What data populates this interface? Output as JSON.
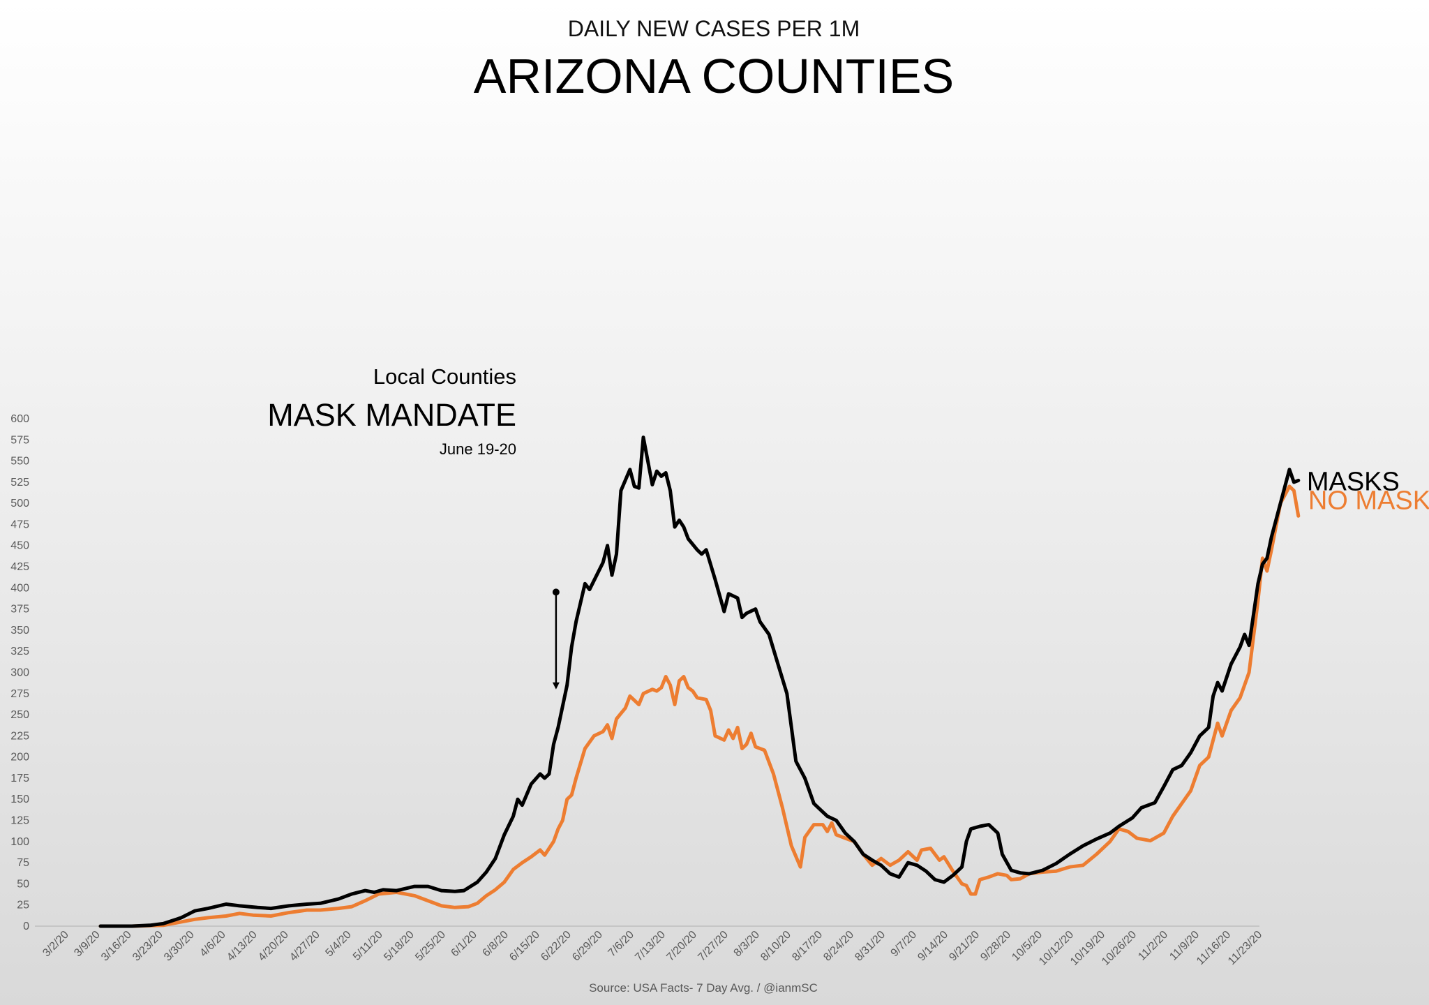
{
  "chart_data": {
    "type": "line",
    "subtitle": "DAILY NEW CASES PER 1M",
    "title": "ARIZONA COUNTIES",
    "source": "Source: USA Facts- 7 Day Avg. / @ianmSC",
    "x_start": "3/2/20",
    "x_end": "11/30/20",
    "x_tick_labels": [
      "3/2/20",
      "3/9/20",
      "3/16/20",
      "3/23/20",
      "3/30/20",
      "4/6/20",
      "4/13/20",
      "4/20/20",
      "4/27/20",
      "5/4/20",
      "5/11/20",
      "5/18/20",
      "5/25/20",
      "6/1/20",
      "6/8/20",
      "6/15/20",
      "6/22/20",
      "6/29/20",
      "7/6/20",
      "7/13/20",
      "7/20/20",
      "7/27/20",
      "8/3/20",
      "8/10/20",
      "8/17/20",
      "8/24/20",
      "8/31/20",
      "9/7/20",
      "9/14/20",
      "9/21/20",
      "9/28/20",
      "10/5/20",
      "10/12/20",
      "10/19/20",
      "10/26/20",
      "11/2/20",
      "11/9/20",
      "11/16/20",
      "11/23/20"
    ],
    "y_ticks": [
      0,
      25,
      50,
      75,
      100,
      125,
      150,
      175,
      200,
      225,
      250,
      275,
      300,
      325,
      350,
      375,
      400,
      425,
      450,
      475,
      500,
      525,
      550,
      575,
      600
    ],
    "ylim": [
      0,
      600
    ],
    "grid": false,
    "series": [
      {
        "name": "MASKS",
        "color": "#000000",
        "points": [
          [
            "3/9/20",
            0
          ],
          [
            "3/16/20",
            0
          ],
          [
            "3/20/20",
            1
          ],
          [
            "3/23/20",
            3
          ],
          [
            "3/27/20",
            10
          ],
          [
            "3/30/20",
            18
          ],
          [
            "4/2/20",
            21
          ],
          [
            "4/6/20",
            26
          ],
          [
            "4/9/20",
            24
          ],
          [
            "4/13/20",
            22
          ],
          [
            "4/16/20",
            21
          ],
          [
            "4/20/20",
            24
          ],
          [
            "4/24/20",
            26
          ],
          [
            "4/27/20",
            27
          ],
          [
            "5/1/20",
            32
          ],
          [
            "5/4/20",
            38
          ],
          [
            "5/7/20",
            42
          ],
          [
            "5/9/20",
            40
          ],
          [
            "5/11/20",
            43
          ],
          [
            "5/14/20",
            42
          ],
          [
            "5/18/20",
            47
          ],
          [
            "5/21/20",
            47
          ],
          [
            "5/24/20",
            42
          ],
          [
            "5/27/20",
            41
          ],
          [
            "5/29/20",
            42
          ],
          [
            "6/1/20",
            52
          ],
          [
            "6/3/20",
            64
          ],
          [
            "6/5/20",
            80
          ],
          [
            "6/7/20",
            108
          ],
          [
            "6/9/20",
            130
          ],
          [
            "6/10/20",
            150
          ],
          [
            "6/11/20",
            143
          ],
          [
            "6/13/20",
            168
          ],
          [
            "6/15/20",
            180
          ],
          [
            "6/16/20",
            175
          ],
          [
            "6/17/20",
            180
          ],
          [
            "6/18/20",
            215
          ],
          [
            "6/19/20",
            235
          ],
          [
            "6/20/20",
            260
          ],
          [
            "6/21/20",
            285
          ],
          [
            "6/22/20",
            330
          ],
          [
            "6/23/20",
            360
          ],
          [
            "6/25/20",
            405
          ],
          [
            "6/26/20",
            398
          ],
          [
            "6/29/20",
            430
          ],
          [
            "6/30/20",
            450
          ],
          [
            "7/1/20",
            415
          ],
          [
            "7/2/20",
            440
          ],
          [
            "7/3/20",
            515
          ],
          [
            "7/5/20",
            540
          ],
          [
            "7/6/20",
            520
          ],
          [
            "7/7/20",
            518
          ],
          [
            "7/8/20",
            578
          ],
          [
            "7/10/20",
            522
          ],
          [
            "7/11/20",
            538
          ],
          [
            "7/12/20",
            532
          ],
          [
            "7/13/20",
            536
          ],
          [
            "7/14/20",
            515
          ],
          [
            "7/15/20",
            472
          ],
          [
            "7/16/20",
            480
          ],
          [
            "7/17/20",
            472
          ],
          [
            "7/18/20",
            458
          ],
          [
            "7/20/20",
            445
          ],
          [
            "7/21/20",
            440
          ],
          [
            "7/22/20",
            445
          ],
          [
            "7/24/20",
            410
          ],
          [
            "7/26/20",
            372
          ],
          [
            "7/27/20",
            393
          ],
          [
            "7/29/20",
            388
          ],
          [
            "7/30/20",
            365
          ],
          [
            "7/31/20",
            370
          ],
          [
            "8/2/20",
            375
          ],
          [
            "8/3/20",
            360
          ],
          [
            "8/5/20",
            345
          ],
          [
            "8/7/20",
            310
          ],
          [
            "8/9/20",
            275
          ],
          [
            "8/11/20",
            195
          ],
          [
            "8/13/20",
            175
          ],
          [
            "8/15/20",
            145
          ],
          [
            "8/17/20",
            135
          ],
          [
            "8/18/20",
            130
          ],
          [
            "8/20/20",
            125
          ],
          [
            "8/22/20",
            110
          ],
          [
            "8/24/20",
            100
          ],
          [
            "8/26/20",
            85
          ],
          [
            "8/28/20",
            78
          ],
          [
            "8/30/20",
            72
          ],
          [
            "9/1/20",
            62
          ],
          [
            "9/3/20",
            58
          ],
          [
            "9/5/20",
            75
          ],
          [
            "9/7/20",
            72
          ],
          [
            "9/9/20",
            65
          ],
          [
            "9/11/20",
            55
          ],
          [
            "9/13/20",
            52
          ],
          [
            "9/15/20",
            60
          ],
          [
            "9/17/20",
            70
          ],
          [
            "9/18/20",
            100
          ],
          [
            "9/19/20",
            115
          ],
          [
            "9/21/20",
            118
          ],
          [
            "9/23/20",
            120
          ],
          [
            "9/25/20",
            110
          ],
          [
            "9/26/20",
            85
          ],
          [
            "9/28/20",
            66
          ],
          [
            "9/30/20",
            63
          ],
          [
            "10/2/20",
            62
          ],
          [
            "10/5/20",
            66
          ],
          [
            "10/8/20",
            74
          ],
          [
            "10/11/20",
            85
          ],
          [
            "10/14/20",
            95
          ],
          [
            "10/17/20",
            103
          ],
          [
            "10/20/20",
            110
          ],
          [
            "10/22/20",
            118
          ],
          [
            "10/25/20",
            128
          ],
          [
            "10/27/20",
            140
          ],
          [
            "10/30/20",
            146
          ],
          [
            "11/1/20",
            165
          ],
          [
            "11/3/20",
            185
          ],
          [
            "11/5/20",
            190
          ],
          [
            "11/7/20",
            205
          ],
          [
            "11/9/20",
            225
          ],
          [
            "11/11/20",
            235
          ],
          [
            "11/12/20",
            272
          ],
          [
            "11/13/20",
            288
          ],
          [
            "11/14/20",
            278
          ],
          [
            "11/16/20",
            310
          ],
          [
            "11/18/20",
            330
          ],
          [
            "11/19/20",
            345
          ],
          [
            "11/20/20",
            332
          ],
          [
            "11/22/20",
            405
          ],
          [
            "11/23/20",
            428
          ],
          [
            "11/24/20",
            435
          ],
          [
            "11/25/20",
            460
          ],
          [
            "11/27/20",
            500
          ],
          [
            "11/29/20",
            540
          ],
          [
            "11/30/20",
            525
          ],
          [
            "12/1/20",
            527
          ]
        ]
      },
      {
        "name": "NO MASKS",
        "color": "#ED7D31",
        "points": [
          [
            "3/9/20",
            0
          ],
          [
            "3/16/20",
            0
          ],
          [
            "3/23/20",
            1
          ],
          [
            "3/27/20",
            5
          ],
          [
            "3/30/20",
            8
          ],
          [
            "4/2/20",
            10
          ],
          [
            "4/6/20",
            12
          ],
          [
            "4/9/20",
            15
          ],
          [
            "4/12/20",
            13
          ],
          [
            "4/16/20",
            12
          ],
          [
            "4/20/20",
            16
          ],
          [
            "4/24/20",
            19
          ],
          [
            "4/27/20",
            19
          ],
          [
            "5/1/20",
            21
          ],
          [
            "5/4/20",
            23
          ],
          [
            "5/7/20",
            30
          ],
          [
            "5/10/20",
            38
          ],
          [
            "5/14/20",
            40
          ],
          [
            "5/18/20",
            36
          ],
          [
            "5/21/20",
            30
          ],
          [
            "5/24/20",
            24
          ],
          [
            "5/27/20",
            22
          ],
          [
            "5/30/20",
            23
          ],
          [
            "6/1/20",
            27
          ],
          [
            "6/3/20",
            36
          ],
          [
            "6/5/20",
            43
          ],
          [
            "6/7/20",
            52
          ],
          [
            "6/9/20",
            67
          ],
          [
            "6/11/20",
            75
          ],
          [
            "6/13/20",
            82
          ],
          [
            "6/15/20",
            90
          ],
          [
            "6/16/20",
            84
          ],
          [
            "6/18/20",
            100
          ],
          [
            "6/19/20",
            115
          ],
          [
            "6/20/20",
            125
          ],
          [
            "6/21/20",
            150
          ],
          [
            "6/22/20",
            155
          ],
          [
            "6/23/20",
            175
          ],
          [
            "6/25/20",
            210
          ],
          [
            "6/27/20",
            225
          ],
          [
            "6/29/20",
            230
          ],
          [
            "6/30/20",
            238
          ],
          [
            "7/1/20",
            222
          ],
          [
            "7/2/20",
            245
          ],
          [
            "7/4/20",
            258
          ],
          [
            "7/5/20",
            272
          ],
          [
            "7/7/20",
            262
          ],
          [
            "7/8/20",
            275
          ],
          [
            "7/10/20",
            280
          ],
          [
            "7/11/20",
            278
          ],
          [
            "7/12/20",
            282
          ],
          [
            "7/13/20",
            295
          ],
          [
            "7/14/20",
            285
          ],
          [
            "7/15/20",
            262
          ],
          [
            "7/16/20",
            290
          ],
          [
            "7/17/20",
            295
          ],
          [
            "7/18/20",
            282
          ],
          [
            "7/19/20",
            278
          ],
          [
            "7/20/20",
            270
          ],
          [
            "7/22/20",
            268
          ],
          [
            "7/23/20",
            255
          ],
          [
            "7/24/20",
            225
          ],
          [
            "7/26/20",
            220
          ],
          [
            "7/27/20",
            232
          ],
          [
            "7/28/20",
            222
          ],
          [
            "7/29/20",
            235
          ],
          [
            "7/30/20",
            210
          ],
          [
            "7/31/20",
            215
          ],
          [
            "8/1/20",
            228
          ],
          [
            "8/2/20",
            212
          ],
          [
            "8/4/20",
            208
          ],
          [
            "8/6/20",
            180
          ],
          [
            "8/8/20",
            140
          ],
          [
            "8/10/20",
            95
          ],
          [
            "8/12/20",
            70
          ],
          [
            "8/13/20",
            105
          ],
          [
            "8/15/20",
            120
          ],
          [
            "8/17/20",
            120
          ],
          [
            "8/18/20",
            112
          ],
          [
            "8/19/20",
            122
          ],
          [
            "8/20/20",
            108
          ],
          [
            "8/22/20",
            104
          ],
          [
            "8/24/20",
            100
          ],
          [
            "8/26/20",
            85
          ],
          [
            "8/28/20",
            72
          ],
          [
            "8/30/20",
            80
          ],
          [
            "9/1/20",
            72
          ],
          [
            "9/3/20",
            78
          ],
          [
            "9/5/20",
            88
          ],
          [
            "9/7/20",
            78
          ],
          [
            "9/8/20",
            90
          ],
          [
            "9/10/20",
            92
          ],
          [
            "9/12/20",
            78
          ],
          [
            "9/13/20",
            82
          ],
          [
            "9/15/20",
            65
          ],
          [
            "9/17/20",
            50
          ],
          [
            "9/18/20",
            48
          ],
          [
            "9/19/20",
            38
          ],
          [
            "9/20/20",
            38
          ],
          [
            "9/21/20",
            55
          ],
          [
            "9/23/20",
            58
          ],
          [
            "9/25/20",
            62
          ],
          [
            "9/27/20",
            60
          ],
          [
            "9/28/20",
            55
          ],
          [
            "9/30/20",
            56
          ],
          [
            "10/2/20",
            62
          ],
          [
            "10/5/20",
            64
          ],
          [
            "10/8/20",
            65
          ],
          [
            "10/11/20",
            70
          ],
          [
            "10/14/20",
            72
          ],
          [
            "10/17/20",
            85
          ],
          [
            "10/20/20",
            100
          ],
          [
            "10/22/20",
            115
          ],
          [
            "10/24/20",
            112
          ],
          [
            "10/26/20",
            104
          ],
          [
            "10/29/20",
            101
          ],
          [
            "11/1/20",
            110
          ],
          [
            "11/3/20",
            130
          ],
          [
            "11/5/20",
            145
          ],
          [
            "11/7/20",
            160
          ],
          [
            "11/9/20",
            190
          ],
          [
            "11/11/20",
            200
          ],
          [
            "11/13/20",
            240
          ],
          [
            "11/14/20",
            225
          ],
          [
            "11/16/20",
            255
          ],
          [
            "11/18/20",
            270
          ],
          [
            "11/20/20",
            300
          ],
          [
            "11/22/20",
            385
          ],
          [
            "11/23/20",
            435
          ],
          [
            "11/24/20",
            420
          ],
          [
            "11/25/20",
            445
          ],
          [
            "11/27/20",
            500
          ],
          [
            "11/29/20",
            520
          ],
          [
            "11/30/20",
            515
          ],
          [
            "12/1/20",
            485
          ]
        ]
      }
    ],
    "annotation": {
      "line1": "Local Counties",
      "line2": "MASK MANDATE",
      "line3": "June 19-20",
      "arrow_from_value": 395,
      "arrow_to_value": 280,
      "arrow_date": "6/19/20"
    }
  }
}
